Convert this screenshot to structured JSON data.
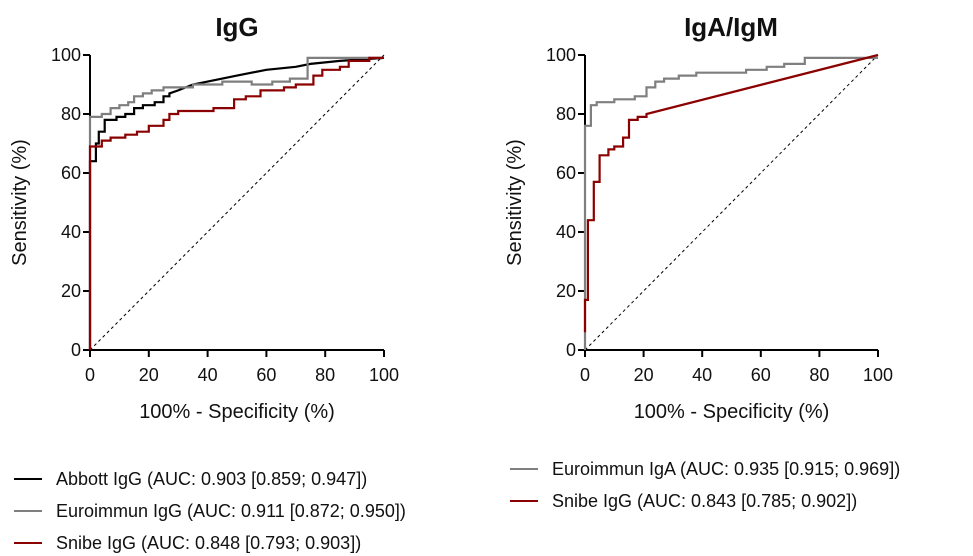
{
  "chart_data": [
    {
      "type": "line",
      "title": "IgG",
      "xlabel": "100% - Specificity (%)",
      "ylabel": "Sensitivity (%)",
      "xlim": [
        0,
        100
      ],
      "ylim": [
        0,
        100
      ],
      "xticks": [
        "0",
        "20",
        "40",
        "60",
        "80",
        "100"
      ],
      "yticks": [
        "0",
        "20",
        "40",
        "60",
        "80",
        "100"
      ],
      "diagonal_reference": true,
      "series": [
        {
          "name": "Abbott IgG (AUC: 0.903 [0.859; 0.947])",
          "color": "#000000",
          "points": [
            [
              0,
              0
            ],
            [
              0,
              64
            ],
            [
              2,
              64
            ],
            [
              2,
              70
            ],
            [
              3,
              70
            ],
            [
              3,
              74
            ],
            [
              5,
              74
            ],
            [
              5,
              78
            ],
            [
              9,
              78
            ],
            [
              9,
              79
            ],
            [
              12,
              79
            ],
            [
              12,
              80
            ],
            [
              15,
              80
            ],
            [
              15,
              82
            ],
            [
              18,
              82
            ],
            [
              18,
              83
            ],
            [
              22,
              83
            ],
            [
              22,
              84
            ],
            [
              25,
              84
            ],
            [
              25,
              86
            ],
            [
              27,
              86
            ],
            [
              27,
              87
            ],
            [
              30,
              88
            ],
            [
              35,
              90
            ],
            [
              40,
              91
            ],
            [
              50,
              93
            ],
            [
              60,
              95
            ],
            [
              70,
              96
            ],
            [
              75,
              97
            ],
            [
              85,
              98
            ],
            [
              100,
              99
            ]
          ]
        },
        {
          "name": "Euroimmun IgG (AUC: 0.911 [0.872; 0.950])",
          "color": "#7f7f7f",
          "points": [
            [
              0,
              0
            ],
            [
              0,
              79
            ],
            [
              4,
              79
            ],
            [
              4,
              80
            ],
            [
              7,
              80
            ],
            [
              7,
              82
            ],
            [
              10,
              82
            ],
            [
              10,
              83
            ],
            [
              13,
              83
            ],
            [
              13,
              84
            ],
            [
              15,
              84
            ],
            [
              15,
              86
            ],
            [
              18,
              86
            ],
            [
              18,
              87
            ],
            [
              21,
              87
            ],
            [
              21,
              88
            ],
            [
              25,
              88
            ],
            [
              25,
              89
            ],
            [
              35,
              89
            ],
            [
              35,
              90
            ],
            [
              45,
              90
            ],
            [
              45,
              91
            ],
            [
              55,
              91
            ],
            [
              55,
              90
            ],
            [
              62,
              90
            ],
            [
              62,
              91
            ],
            [
              68,
              91
            ],
            [
              68,
              92
            ],
            [
              74,
              92
            ],
            [
              74,
              99
            ],
            [
              100,
              99
            ]
          ]
        },
        {
          "name": "Snibe IgG (AUC: 0.848 [0.793; 0.903])",
          "color": "#8b0000",
          "points": [
            [
              0,
              0
            ],
            [
              0,
              69
            ],
            [
              4,
              69
            ],
            [
              4,
              71
            ],
            [
              7,
              71
            ],
            [
              7,
              72
            ],
            [
              12,
              72
            ],
            [
              12,
              73
            ],
            [
              16,
              73
            ],
            [
              16,
              74
            ],
            [
              20,
              74
            ],
            [
              20,
              76
            ],
            [
              25,
              76
            ],
            [
              25,
              78
            ],
            [
              27,
              78
            ],
            [
              27,
              80
            ],
            [
              30,
              80
            ],
            [
              30,
              81
            ],
            [
              42,
              81
            ],
            [
              42,
              82
            ],
            [
              49,
              82
            ],
            [
              49,
              85
            ],
            [
              53,
              85
            ],
            [
              53,
              86
            ],
            [
              58,
              86
            ],
            [
              58,
              88
            ],
            [
              66,
              88
            ],
            [
              66,
              89
            ],
            [
              70,
              89
            ],
            [
              70,
              90
            ],
            [
              76,
              90
            ],
            [
              76,
              93
            ],
            [
              79,
              93
            ],
            [
              79,
              95
            ],
            [
              85,
              95
            ],
            [
              85,
              96
            ],
            [
              88,
              96
            ],
            [
              88,
              98
            ],
            [
              95,
              98
            ],
            [
              95,
              99
            ],
            [
              100,
              99
            ]
          ]
        }
      ]
    },
    {
      "type": "line",
      "title": "IgA/IgM",
      "xlabel": "100% - Specificity (%)",
      "ylabel": "Sensitivity (%)",
      "xlim": [
        0,
        100
      ],
      "ylim": [
        0,
        100
      ],
      "xticks": [
        "0",
        "20",
        "40",
        "60",
        "80",
        "100"
      ],
      "yticks": [
        "0",
        "20",
        "40",
        "60",
        "80",
        "100"
      ],
      "diagonal_reference": true,
      "series": [
        {
          "name": "Euroimmun IgA (AUC: 0.935 [0.915; 0.969])",
          "color": "#7f7f7f",
          "points": [
            [
              0,
              0
            ],
            [
              0,
              76
            ],
            [
              2,
              76
            ],
            [
              2,
              83
            ],
            [
              4,
              83
            ],
            [
              4,
              84
            ],
            [
              10,
              84
            ],
            [
              10,
              85
            ],
            [
              17,
              85
            ],
            [
              17,
              86
            ],
            [
              21,
              86
            ],
            [
              21,
              89
            ],
            [
              24,
              89
            ],
            [
              24,
              91
            ],
            [
              27,
              91
            ],
            [
              27,
              92
            ],
            [
              32,
              92
            ],
            [
              32,
              93
            ],
            [
              38,
              93
            ],
            [
              38,
              94
            ],
            [
              55,
              94
            ],
            [
              55,
              95
            ],
            [
              62,
              95
            ],
            [
              62,
              96
            ],
            [
              68,
              96
            ],
            [
              68,
              97
            ],
            [
              75,
              97
            ],
            [
              75,
              99
            ],
            [
              100,
              99
            ]
          ]
        },
        {
          "name": "Snibe IgG (AUC: 0.843 [0.785; 0.902])",
          "color": "#8b0000",
          "points": [
            [
              0,
              6
            ],
            [
              0,
              17
            ],
            [
              1,
              17
            ],
            [
              1,
              44
            ],
            [
              3,
              44
            ],
            [
              3,
              57
            ],
            [
              5,
              57
            ],
            [
              5,
              66
            ],
            [
              8,
              66
            ],
            [
              8,
              68
            ],
            [
              10,
              68
            ],
            [
              10,
              69
            ],
            [
              13,
              69
            ],
            [
              13,
              72
            ],
            [
              15,
              72
            ],
            [
              15,
              78
            ],
            [
              18,
              78
            ],
            [
              18,
              79
            ],
            [
              21,
              79
            ],
            [
              21,
              80
            ],
            [
              100,
              100
            ]
          ]
        }
      ]
    }
  ],
  "legend": {
    "left": [
      {
        "label": "Abbott IgG (AUC: 0.903 [0.859; 0.947])",
        "color": "#000000"
      },
      {
        "label": "Euroimmun IgG (AUC: 0.911 [0.872; 0.950])",
        "color": "#7f7f7f"
      },
      {
        "label": "Snibe IgG (AUC: 0.848 [0.793; 0.903])",
        "color": "#8b0000"
      }
    ],
    "right": [
      {
        "label": "Euroimmun IgA (AUC: 0.935 [0.915; 0.969])",
        "color": "#7f7f7f"
      },
      {
        "label": "Snibe IgG (AUC: 0.843 [0.785; 0.902])",
        "color": "#8b0000"
      }
    ]
  }
}
